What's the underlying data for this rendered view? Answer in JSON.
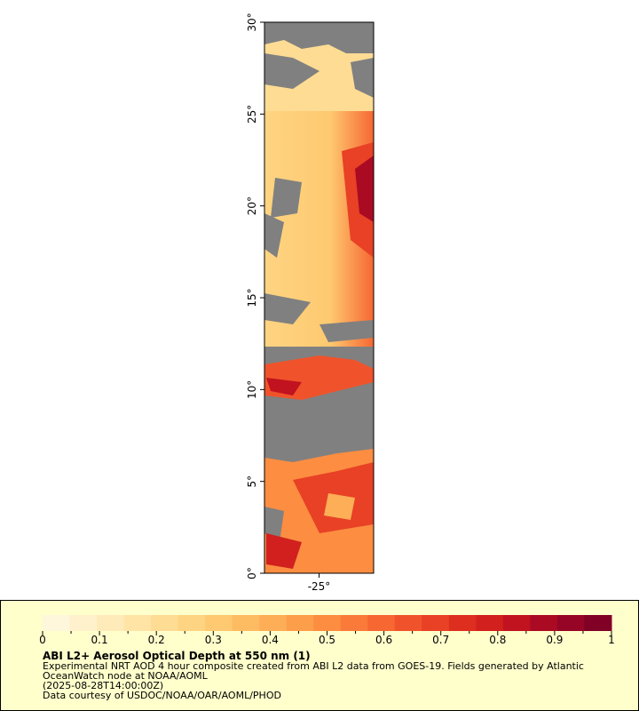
{
  "chart_data": {
    "type": "map",
    "title": "ABI L2+ Aerosol Optical Depth at 550 nm (1)",
    "notes": [
      "Experimental NRT AOD 4 hour composite created from ABI L2 data from GOES-19. Fields generated by Atlantic",
      "OceanWatch node at NOAA/AOML",
      "(2025-08-28T14:00:00Z)",
      "Data courtesy of USDOC/NOAA/OAR/AOML/PHOD"
    ],
    "xlim": [
      -28,
      -22
    ],
    "xticks": [
      {
        "value": -25,
        "label": "-25°"
      }
    ],
    "ylim": [
      0,
      30
    ],
    "yticks": [
      {
        "value": 0,
        "label": "0°"
      },
      {
        "value": 5,
        "label": "5°"
      },
      {
        "value": 10,
        "label": "10°"
      },
      {
        "value": 15,
        "label": "15°"
      },
      {
        "value": 20,
        "label": "20°"
      },
      {
        "value": 25,
        "label": "25°"
      },
      {
        "value": 30,
        "label": "30°"
      }
    ],
    "colorbar": {
      "lim": [
        0,
        1
      ],
      "ticks": [
        0,
        0.1,
        0.2,
        0.3,
        0.4,
        0.5,
        0.6,
        0.7,
        0.8,
        0.9,
        1
      ],
      "minor_ticks": [
        0.05,
        0.15,
        0.25,
        0.35,
        0.45,
        0.55,
        0.65,
        0.75,
        0.85,
        0.95
      ],
      "colors": [
        "#fff7dc",
        "#fff1cb",
        "#ffebb9",
        "#ffe4a6",
        "#fedc94",
        "#fed482",
        "#fec970",
        "#febc62",
        "#fdae56",
        "#fd9e4b",
        "#fc8d41",
        "#fa7a39",
        "#f66732",
        "#f0532b",
        "#e84125",
        "#de2e20",
        "#d1201e",
        "#c0121f",
        "#ab0a23",
        "#960426",
        "#800026"
      ]
    }
  }
}
